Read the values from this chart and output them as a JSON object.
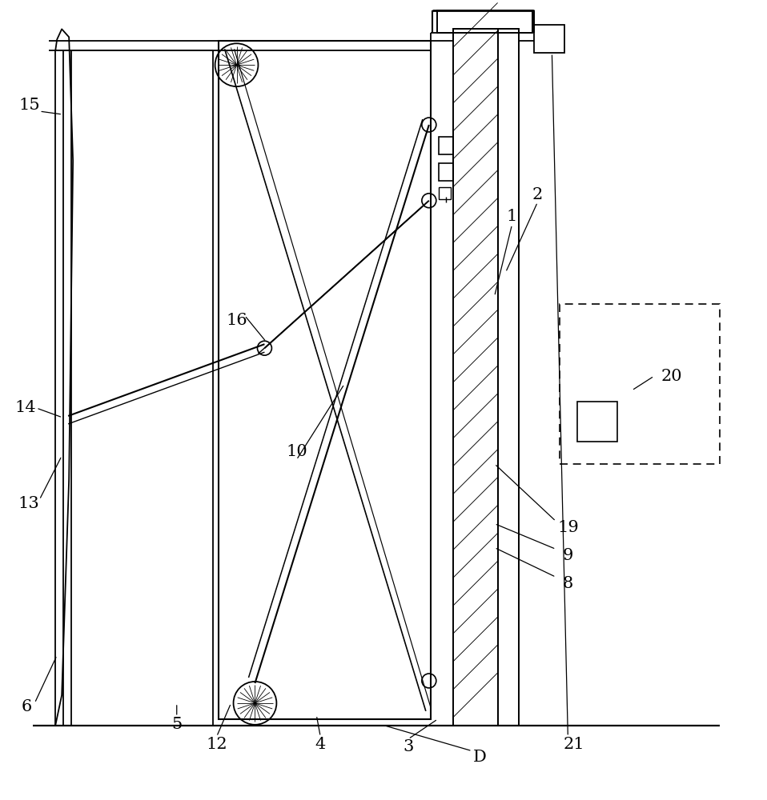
{
  "bg": "#ffffff",
  "lc": "#000000",
  "fig_w": 9.58,
  "fig_h": 10.0,
  "dpi": 100,
  "labels": [
    [
      "1",
      640,
      730
    ],
    [
      "2",
      672,
      757
    ],
    [
      "3",
      510,
      65
    ],
    [
      "4",
      400,
      68
    ],
    [
      "5",
      220,
      93
    ],
    [
      "6",
      32,
      115
    ],
    [
      "8",
      710,
      270
    ],
    [
      "9",
      710,
      305
    ],
    [
      "10",
      370,
      435
    ],
    [
      "12",
      270,
      68
    ],
    [
      "13",
      35,
      370
    ],
    [
      "14",
      30,
      490
    ],
    [
      "15",
      35,
      870
    ],
    [
      "16",
      295,
      600
    ],
    [
      "19",
      710,
      340
    ],
    [
      "20",
      840,
      530
    ],
    [
      "21",
      718,
      68
    ],
    [
      "D",
      600,
      52
    ]
  ],
  "ann_lines": [
    [
      640,
      720,
      618,
      630
    ],
    [
      672,
      748,
      632,
      660
    ],
    [
      510,
      75,
      547,
      100
    ],
    [
      400,
      78,
      395,
      105
    ],
    [
      220,
      103,
      220,
      120
    ],
    [
      42,
      120,
      70,
      180
    ],
    [
      695,
      278,
      618,
      315
    ],
    [
      695,
      313,
      618,
      345
    ],
    [
      370,
      425,
      430,
      520
    ],
    [
      270,
      78,
      288,
      120
    ],
    [
      48,
      375,
      76,
      430
    ],
    [
      44,
      490,
      77,
      478
    ],
    [
      48,
      862,
      77,
      858
    ],
    [
      305,
      606,
      332,
      573
    ],
    [
      695,
      348,
      618,
      420
    ],
    [
      818,
      530,
      790,
      512
    ],
    [
      710,
      78,
      690,
      935
    ],
    [
      590,
      60,
      480,
      92
    ]
  ]
}
